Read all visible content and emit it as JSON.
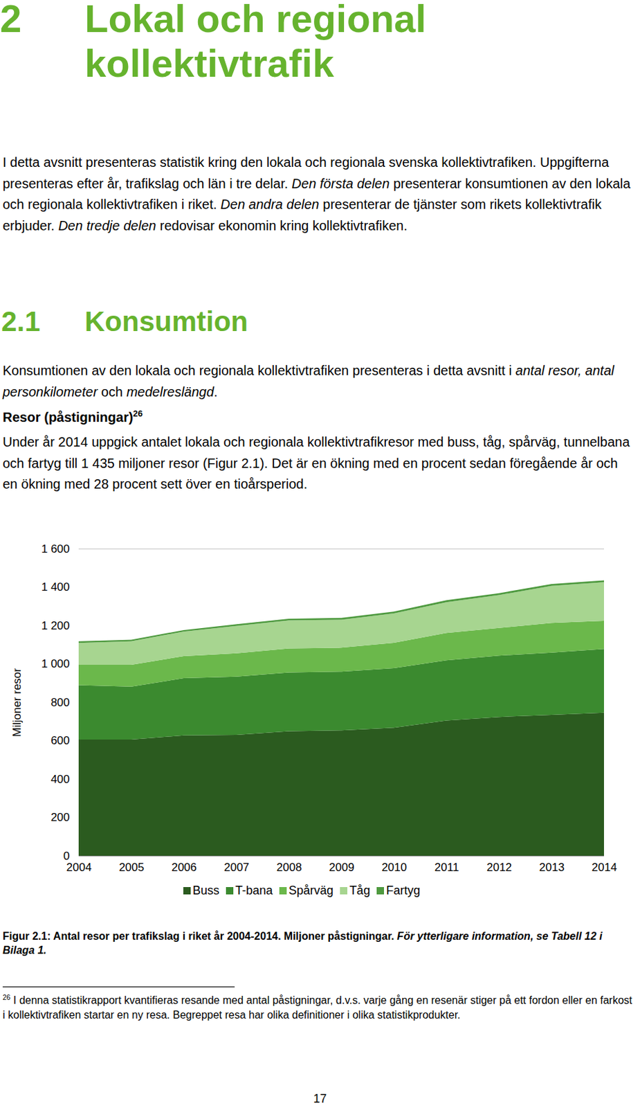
{
  "heading": {
    "number": "2",
    "title": "Lokal och regional kollektivtrafik"
  },
  "intro": [
    {
      "text": "I detta avsnitt presenteras statistik kring den lokala och regionala svenska kollektivtrafiken. Uppgifterna presenteras efter år, trafikslag och län i tre delar. "
    },
    {
      "text": "Den första delen",
      "italic": true
    },
    {
      "text": " presenterar konsumtionen av den lokala och regionala kollektivtrafiken i riket. "
    },
    {
      "text": "Den andra delen",
      "italic": true
    },
    {
      "text": " presenterar de tjänster som rikets kollektivtrafik erbjuder. "
    },
    {
      "text": "Den tredje delen",
      "italic": true
    },
    {
      "text": " redovisar ekonomin kring kollektivtrafiken."
    }
  ],
  "section": {
    "number": "2.1",
    "title": "Konsumtion"
  },
  "section_text": [
    {
      "text": "Konsumtionen av den lokala och regionala kollektivtrafiken presenteras i detta avsnitt i "
    },
    {
      "text": "antal resor, antal personkilometer",
      "italic": true
    },
    {
      "text": " och "
    },
    {
      "text": "medelreslängd",
      "italic": true
    },
    {
      "text": "."
    }
  ],
  "subheading": {
    "text": "Resor (påstigningar)",
    "footnote_ref": "26"
  },
  "subheading_text": [
    {
      "text": "Under år 2014 uppgick antalet lokala och regionala kollektivtrafikresor med buss, tåg, spårväg, tunnelbana och fartyg till 1 435 miljoner resor (Figur 2.1). Det är en ökning med en procent sedan föregående år och en ökning med 28 procent sett över en tioårsperiod."
    }
  ],
  "chart_data": {
    "type": "area",
    "stacked": true,
    "y_label": "Miljoner resor",
    "x": [
      2004,
      2005,
      2006,
      2007,
      2008,
      2009,
      2010,
      2011,
      2012,
      2013,
      2014
    ],
    "xlim": [
      2004,
      2014
    ],
    "xticks": [
      2004,
      2005,
      2006,
      2007,
      2008,
      2009,
      2010,
      2011,
      2012,
      2013,
      2014
    ],
    "ylim": [
      0,
      1600
    ],
    "yticks": [
      0,
      200,
      400,
      600,
      800,
      {
        "value": 1000,
        "label": "1 000"
      },
      {
        "value": 1200,
        "label": "1 200"
      },
      {
        "value": 1400,
        "label": "1 400"
      },
      {
        "value": 1600,
        "label": "1 600"
      }
    ],
    "grid": false,
    "series": [
      {
        "name": "Buss",
        "color": "#2b5b1f",
        "values": [
          605,
          605,
          627,
          630,
          649,
          653,
          667,
          704,
          723,
          734,
          745
        ]
      },
      {
        "name": "T-bana",
        "color": "#3b8a2f",
        "values": [
          284,
          276,
          298,
          303,
          306,
          306,
          310,
          314,
          320,
          324,
          332
        ]
      },
      {
        "name": "Spårväg",
        "color": "#6bb84b",
        "values": [
          106,
          114,
          115,
          122,
          125,
          125,
          133,
          143,
          144,
          155,
          147
        ]
      },
      {
        "name": "Tåg",
        "color": "#a7d590",
        "values": [
          114,
          122,
          128,
          142,
          146,
          146,
          153,
          160,
          171,
          193,
          201
        ]
      },
      {
        "name": "Fartyg",
        "color": "#4e9a3f",
        "values": [
          8,
          8,
          8,
          9,
          9,
          9,
          9,
          10,
          10,
          10,
          10
        ]
      }
    ]
  },
  "caption": [
    {
      "text": "Figur 2.1: Antal resor per trafikslag i riket år 2004-2014. Miljoner påstigningar. "
    },
    {
      "text": "För ytterligare information, se Tabell 12 i Bilaga 1.",
      "italic": true
    }
  ],
  "footnote": {
    "marker": "26",
    "text": " I denna statistikrapport kvantifieras resande med antal påstigningar, d.v.s. varje gång en resenär stiger på ett fordon eller en farkost i kollektivtrafiken startar en ny resa. Begreppet resa har olika definitioner i olika statistikprodukter."
  },
  "page_number": "17"
}
